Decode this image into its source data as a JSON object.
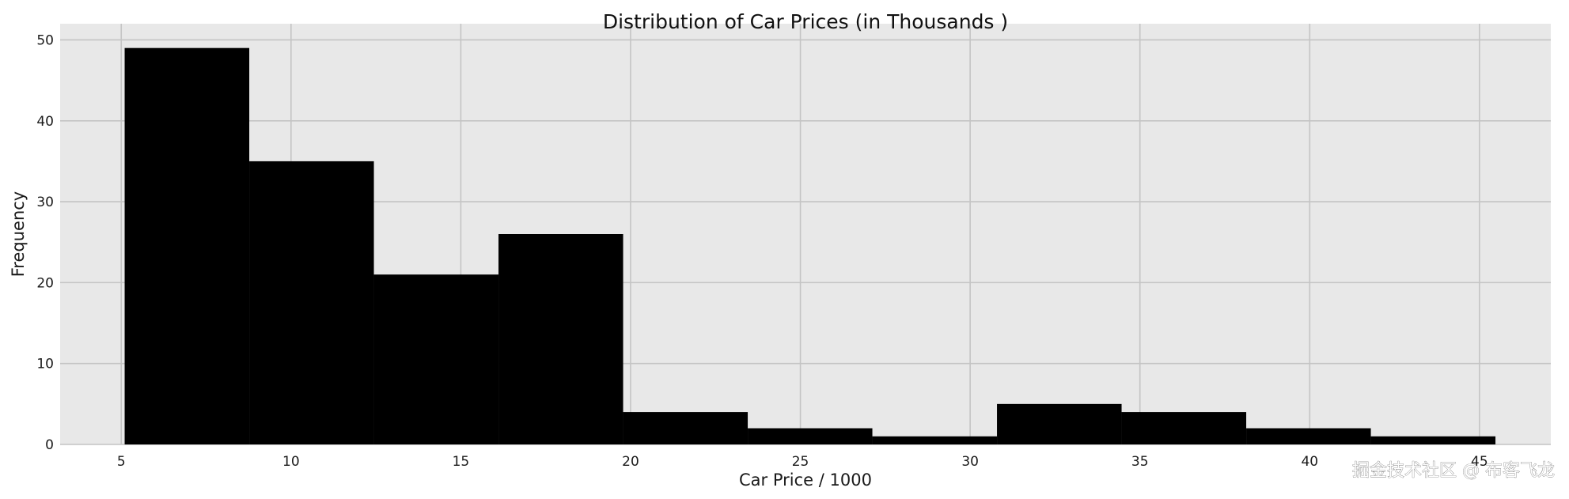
{
  "chart_data": {
    "type": "histogram",
    "title": "Distribution of Car Prices (in Thousands )",
    "xlabel": "Car Price / 1000",
    "ylabel": "Frequency",
    "xlim": [
      3.2,
      47.1
    ],
    "ylim": [
      0,
      52
    ],
    "xticks": [
      5,
      10,
      15,
      20,
      25,
      30,
      35,
      40,
      45
    ],
    "yticks": [
      0,
      10,
      20,
      30,
      40,
      50
    ],
    "bin_edges": [
      5.1,
      8.77,
      12.44,
      16.11,
      19.78,
      23.45,
      27.12,
      30.79,
      34.46,
      38.13,
      41.8,
      45.47
    ],
    "counts": [
      49,
      35,
      21,
      26,
      4,
      2,
      1,
      5,
      4,
      2,
      1
    ],
    "grid": true,
    "colors": {
      "bars": "#000000",
      "plot_background": "#e8e8e8",
      "grid": "#c4c4c4"
    }
  },
  "watermark": "掘金技术社区 @ 布客飞龙"
}
